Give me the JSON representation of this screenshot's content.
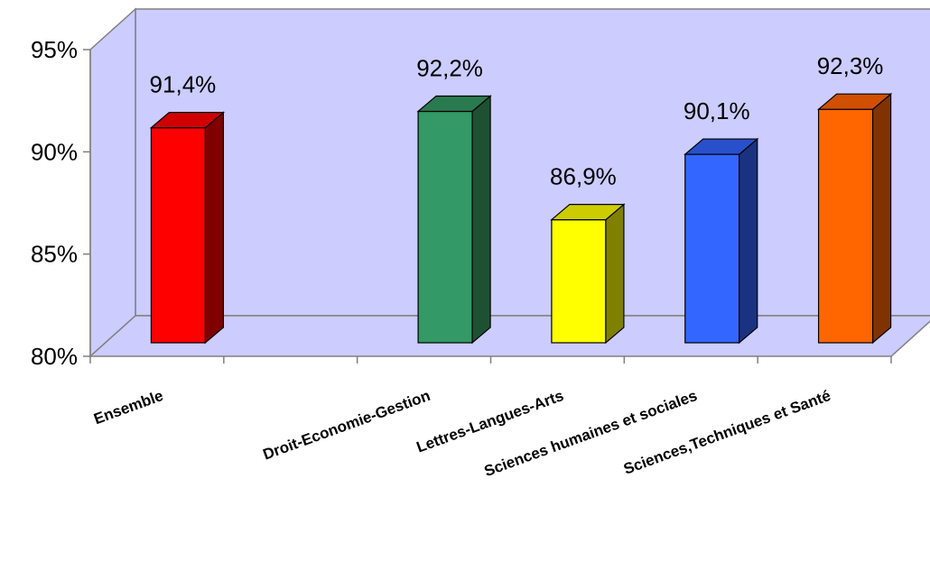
{
  "chart_data": {
    "type": "bar",
    "style": "3d-column",
    "title": "",
    "xlabel": "",
    "ylabel": "",
    "ylim": [
      80,
      95
    ],
    "y_ticks": [
      "80%",
      "85%",
      "90%",
      "95%"
    ],
    "y_tick_values": [
      80,
      85,
      90,
      95
    ],
    "categories": [
      "Ensemble",
      "",
      "Droit-Economie-Gestion",
      "Lettres-Langues-Arts",
      "Sciences humaines et sociales",
      "Sciences,Techniques et Santé"
    ],
    "values": [
      91.4,
      null,
      92.2,
      86.9,
      90.1,
      92.3
    ],
    "data_labels": [
      "91,4%",
      "",
      "92,2%",
      "86,9%",
      "90,1%",
      "92,3%"
    ],
    "colors": [
      "#ff0000",
      null,
      "#339966",
      "#ffff00",
      "#3366ff",
      "#ff6600"
    ],
    "side_colors": [
      "#800000",
      null,
      "#1e5133",
      "#808000",
      "#1a3380",
      "#803300"
    ],
    "top_colors": [
      "#d00000",
      null,
      "#2a7a50",
      "#cccc00",
      "#2850cc",
      "#d05000"
    ],
    "wall_color": "#ccccff",
    "floor_color": "#ccccff",
    "grid": false,
    "legend": "none"
  }
}
